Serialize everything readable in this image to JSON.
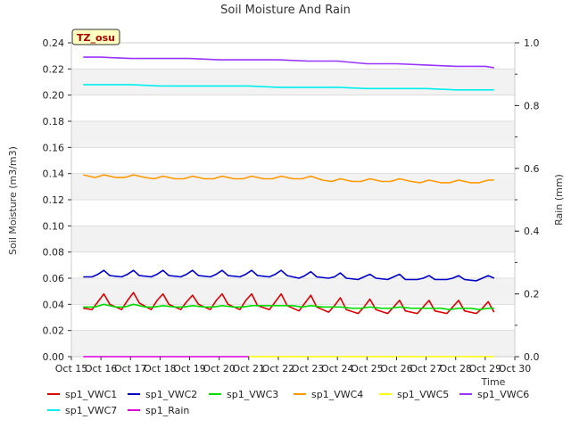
{
  "chart_data": {
    "type": "line",
    "title": "Soil Moisture And Rain",
    "badge": "TZ_osu",
    "xlabel": "Time",
    "ylabel_left": "Soil Moisture (m3/m3)",
    "ylabel_right": "Rain (mm)",
    "x_ticks": [
      "Oct 15",
      "Oct 16",
      "Oct 17",
      "Oct 18",
      "Oct 19",
      "Oct 20",
      "Oct 21",
      "Oct 22",
      "Oct 23",
      "Oct 24",
      "Oct 25",
      "Oct 26",
      "Oct 27",
      "Oct 28",
      "Oct 29",
      "Oct 30"
    ],
    "xlim": [
      15,
      30
    ],
    "ylim_left": [
      0,
      0.24
    ],
    "ylim_right": [
      0,
      1.0
    ],
    "y_ticks_left": [
      "0.00",
      "0.02",
      "0.04",
      "0.06",
      "0.08",
      "0.10",
      "0.12",
      "0.14",
      "0.16",
      "0.18",
      "0.20",
      "0.22",
      "0.24"
    ],
    "y_ticks_right": [
      "0.0",
      "0.2",
      "0.4",
      "0.6",
      "0.8",
      "1.0"
    ],
    "grid": "horizontal bands",
    "legend_position": "bottom",
    "series": [
      {
        "name": "sp1_VWC1",
        "color": "#dd0000",
        "axis": "left",
        "x": [
          15.4,
          15.7,
          15.9,
          16.1,
          16.3,
          16.7,
          16.9,
          17.1,
          17.3,
          17.7,
          17.9,
          18.1,
          18.3,
          18.7,
          18.9,
          19.1,
          19.3,
          19.7,
          19.9,
          20.1,
          20.3,
          20.7,
          20.9,
          21.1,
          21.3,
          21.7,
          21.9,
          22.1,
          22.3,
          22.7,
          22.9,
          23.1,
          23.3,
          23.7,
          23.9,
          24.1,
          24.3,
          24.7,
          24.9,
          25.1,
          25.3,
          25.7,
          25.9,
          26.1,
          26.3,
          26.7,
          26.9,
          27.1,
          27.3,
          27.7,
          27.9,
          28.1,
          28.3,
          28.7,
          28.9,
          29.1,
          29.3
        ],
        "y": [
          0.037,
          0.036,
          0.042,
          0.048,
          0.04,
          0.036,
          0.043,
          0.049,
          0.041,
          0.036,
          0.043,
          0.048,
          0.04,
          0.036,
          0.042,
          0.047,
          0.04,
          0.036,
          0.043,
          0.048,
          0.04,
          0.036,
          0.043,
          0.048,
          0.039,
          0.036,
          0.042,
          0.048,
          0.039,
          0.035,
          0.041,
          0.047,
          0.038,
          0.034,
          0.039,
          0.045,
          0.036,
          0.033,
          0.038,
          0.044,
          0.036,
          0.033,
          0.038,
          0.043,
          0.035,
          0.033,
          0.038,
          0.043,
          0.035,
          0.033,
          0.038,
          0.043,
          0.035,
          0.033,
          0.037,
          0.042,
          0.034
        ]
      },
      {
        "name": "sp1_VWC2",
        "color": "#0000cc",
        "axis": "left",
        "x": [
          15.4,
          15.7,
          15.9,
          16.1,
          16.3,
          16.7,
          16.9,
          17.1,
          17.3,
          17.7,
          17.9,
          18.1,
          18.3,
          18.7,
          18.9,
          19.1,
          19.3,
          19.7,
          19.9,
          20.1,
          20.3,
          20.7,
          20.9,
          21.1,
          21.3,
          21.7,
          21.9,
          22.1,
          22.3,
          22.7,
          22.9,
          23.1,
          23.3,
          23.7,
          23.9,
          24.1,
          24.3,
          24.7,
          24.9,
          25.1,
          25.3,
          25.7,
          25.9,
          26.1,
          26.3,
          26.7,
          26.9,
          27.1,
          27.3,
          27.7,
          27.9,
          28.1,
          28.3,
          28.7,
          28.9,
          29.1,
          29.3
        ],
        "y": [
          0.061,
          0.061,
          0.063,
          0.066,
          0.062,
          0.061,
          0.063,
          0.066,
          0.062,
          0.061,
          0.063,
          0.066,
          0.062,
          0.061,
          0.063,
          0.066,
          0.062,
          0.061,
          0.063,
          0.066,
          0.062,
          0.061,
          0.063,
          0.066,
          0.062,
          0.061,
          0.063,
          0.066,
          0.062,
          0.06,
          0.062,
          0.065,
          0.061,
          0.06,
          0.061,
          0.064,
          0.06,
          0.059,
          0.061,
          0.063,
          0.06,
          0.059,
          0.061,
          0.063,
          0.059,
          0.059,
          0.06,
          0.062,
          0.059,
          0.059,
          0.06,
          0.062,
          0.059,
          0.058,
          0.06,
          0.062,
          0.06
        ]
      },
      {
        "name": "sp1_VWC3",
        "color": "#00dd00",
        "axis": "left",
        "x": [
          15.4,
          15.8,
          16.1,
          16.5,
          16.8,
          17.1,
          17.5,
          17.8,
          18.1,
          18.5,
          18.8,
          19.1,
          19.5,
          19.8,
          20.1,
          20.5,
          20.8,
          21.1,
          21.5,
          21.8,
          22.1,
          22.5,
          22.8,
          23.1,
          23.5,
          23.8,
          24.1,
          24.5,
          24.8,
          25.1,
          25.5,
          25.8,
          26.1,
          26.5,
          26.8,
          27.1,
          27.5,
          27.8,
          28.1,
          28.5,
          28.8,
          29.1,
          29.3
        ],
        "y": [
          0.038,
          0.038,
          0.04,
          0.038,
          0.038,
          0.04,
          0.038,
          0.038,
          0.039,
          0.038,
          0.038,
          0.039,
          0.038,
          0.038,
          0.039,
          0.038,
          0.038,
          0.039,
          0.039,
          0.039,
          0.039,
          0.039,
          0.038,
          0.039,
          0.038,
          0.038,
          0.038,
          0.037,
          0.037,
          0.038,
          0.037,
          0.037,
          0.038,
          0.037,
          0.037,
          0.037,
          0.037,
          0.036,
          0.037,
          0.037,
          0.036,
          0.037,
          0.037
        ]
      },
      {
        "name": "sp1_VWC4",
        "color": "#ff9900",
        "axis": "left",
        "x": [
          15.4,
          15.8,
          16.1,
          16.5,
          16.8,
          17.1,
          17.5,
          17.8,
          18.1,
          18.5,
          18.8,
          19.1,
          19.5,
          19.8,
          20.1,
          20.5,
          20.8,
          21.1,
          21.5,
          21.8,
          22.1,
          22.5,
          22.8,
          23.1,
          23.5,
          23.8,
          24.1,
          24.5,
          24.8,
          25.1,
          25.5,
          25.8,
          26.1,
          26.5,
          26.8,
          27.1,
          27.5,
          27.8,
          28.1,
          28.5,
          28.8,
          29.1,
          29.3
        ],
        "y": [
          0.139,
          0.137,
          0.139,
          0.137,
          0.137,
          0.139,
          0.137,
          0.136,
          0.138,
          0.136,
          0.136,
          0.138,
          0.136,
          0.136,
          0.138,
          0.136,
          0.136,
          0.138,
          0.136,
          0.136,
          0.138,
          0.136,
          0.136,
          0.138,
          0.135,
          0.134,
          0.136,
          0.134,
          0.134,
          0.136,
          0.134,
          0.134,
          0.136,
          0.134,
          0.133,
          0.135,
          0.133,
          0.133,
          0.135,
          0.133,
          0.133,
          0.135,
          0.135
        ]
      },
      {
        "name": "sp1_VWC5",
        "color": "#ffff00",
        "axis": "left",
        "x": [
          21.0,
          29.3
        ],
        "y": [
          0.0,
          0.0
        ]
      },
      {
        "name": "sp1_VWC6",
        "color": "#9933ff",
        "axis": "left",
        "x": [
          15.4,
          16.0,
          17.0,
          18.0,
          19.0,
          20.0,
          21.0,
          22.0,
          23.0,
          24.0,
          25.0,
          26.0,
          27.0,
          28.0,
          29.0,
          29.3
        ],
        "y": [
          0.229,
          0.229,
          0.228,
          0.228,
          0.228,
          0.227,
          0.227,
          0.227,
          0.226,
          0.226,
          0.224,
          0.224,
          0.223,
          0.222,
          0.222,
          0.221
        ]
      },
      {
        "name": "sp1_VWC7",
        "color": "#00eeee",
        "axis": "left",
        "x": [
          15.4,
          16.0,
          17.0,
          18.0,
          19.0,
          20.0,
          21.0,
          22.0,
          23.0,
          24.0,
          25.0,
          26.0,
          27.0,
          28.0,
          29.0,
          29.3
        ],
        "y": [
          0.208,
          0.208,
          0.208,
          0.207,
          0.207,
          0.207,
          0.207,
          0.206,
          0.206,
          0.206,
          0.205,
          0.205,
          0.205,
          0.204,
          0.204,
          0.204
        ]
      },
      {
        "name": "sp1_Rain",
        "color": "#dd00dd",
        "axis": "right",
        "x": [
          15.4,
          21.0
        ],
        "y": [
          0.0,
          0.0
        ]
      }
    ]
  }
}
